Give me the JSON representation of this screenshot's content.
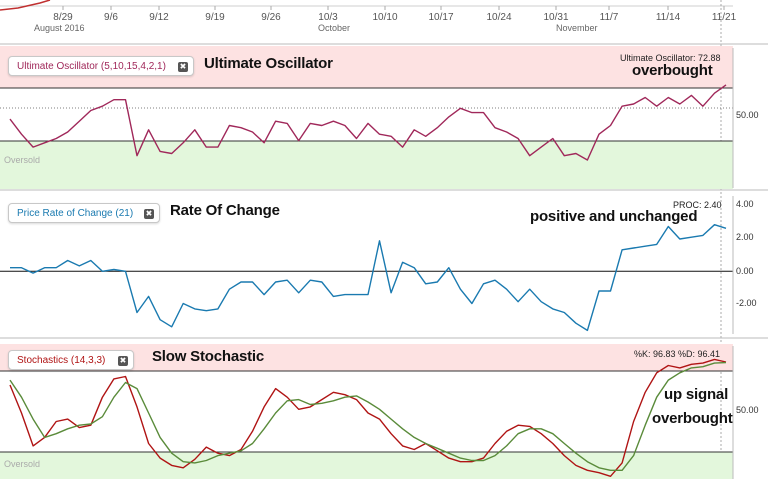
{
  "chart_data": [
    {
      "type": "line",
      "panel": "price-timeline",
      "x_tick_labels": [
        "8/29",
        "9/6",
        "9/12",
        "9/19",
        "9/26",
        "10/3",
        "10/10",
        "10/17",
        "10/24",
        "10/31",
        "11/7",
        "11/14",
        "11/21"
      ],
      "month_labels": [
        "August 2016",
        "October",
        "November"
      ]
    },
    {
      "type": "line",
      "panel": "ultimate-oscillator",
      "legend": "Ultimate Oscillator (5,10,15,4,2,1)",
      "readout": "Ultimate Oscillator: 72.88",
      "title": "Ultimate Oscillator",
      "annotation": "overbought",
      "y_tick_labels": [
        "50.00"
      ],
      "overbought_label": "",
      "oversold_label": "Oversold",
      "ylim": [
        25,
        90
      ],
      "series": [
        {
          "name": "Ultimate Oscillator",
          "color": "#a0285a",
          "values": [
            57,
            50,
            44,
            46,
            48,
            51,
            56,
            61,
            63,
            66,
            66,
            40,
            52,
            42,
            41,
            46,
            52,
            44,
            44,
            54,
            53,
            51,
            46,
            56,
            55,
            47,
            55,
            54,
            56,
            54,
            48,
            55,
            50,
            49,
            44,
            52,
            49,
            53,
            58,
            62,
            60,
            60,
            53,
            51,
            48,
            40,
            44,
            48,
            40,
            41,
            38,
            50,
            54,
            63,
            64,
            67,
            63,
            67,
            64,
            68,
            63,
            69,
            72.88
          ]
        }
      ]
    },
    {
      "type": "line",
      "panel": "price-rate-of-change",
      "legend": "Price Rate of Change (21)",
      "readout": "PROC: 2.40",
      "title": "Rate Of Change",
      "annotation": "positive and unchanged",
      "y_tick_labels": [
        "4.00",
        "2.00",
        "0.00",
        "-2.00"
      ],
      "ylim": [
        -3.5,
        4.2
      ],
      "zero_line": 0,
      "series": [
        {
          "name": "PROC",
          "color": "#1a7ab0",
          "values": [
            0.2,
            0.2,
            -0.1,
            0.2,
            0.2,
            0.6,
            0.3,
            0.6,
            0.0,
            0.1,
            0.0,
            -2.3,
            -1.4,
            -2.7,
            -3.1,
            -1.8,
            -2.1,
            -2.2,
            -2.1,
            -1.0,
            -0.6,
            -0.6,
            -1.3,
            -0.6,
            -0.5,
            -1.2,
            -0.5,
            -0.6,
            -1.4,
            -1.3,
            -1.3,
            -1.3,
            1.7,
            -1.2,
            0.5,
            0.2,
            -0.7,
            -0.6,
            0.2,
            -1.0,
            -1.8,
            -0.7,
            -0.5,
            -1.0,
            -1.7,
            -1.0,
            -1.7,
            -2.1,
            -2.3,
            -2.9,
            -3.3,
            -1.1,
            -1.1,
            1.2,
            1.3,
            1.4,
            1.5,
            2.5,
            1.8,
            1.9,
            2.0,
            2.6,
            2.4
          ]
        }
      ]
    },
    {
      "type": "line",
      "panel": "slow-stochastic",
      "legend": "Stochastics (14,3,3)",
      "readout": "%K: 96.83 %D: 96.41",
      "title": "Slow Stochastic",
      "annotations": [
        "up signal",
        "overbought"
      ],
      "y_tick_labels": [
        "50.00"
      ],
      "overbought_label": "",
      "oversold_label": "Oversold",
      "ylim": [
        0,
        110
      ],
      "series": [
        {
          "name": "%K",
          "color": "#b01414",
          "values": [
            78,
            55,
            28,
            35,
            48,
            50,
            43,
            45,
            68,
            83,
            85,
            60,
            30,
            18,
            12,
            10,
            17,
            27,
            22,
            20,
            25,
            40,
            60,
            75,
            68,
            58,
            60,
            66,
            72,
            70,
            66,
            55,
            50,
            38,
            28,
            25,
            30,
            24,
            18,
            15,
            15,
            18,
            30,
            40,
            45,
            44,
            38,
            30,
            20,
            12,
            8,
            6,
            3,
            14,
            48,
            72,
            88,
            94,
            92,
            95,
            96,
            99,
            96.83
          ]
        },
        {
          "name": "%D",
          "color": "#5a8b3a",
          "values": [
            82,
            68,
            50,
            35,
            38,
            42,
            45,
            46,
            52,
            68,
            80,
            75,
            55,
            35,
            22,
            15,
            14,
            16,
            20,
            22,
            24,
            30,
            42,
            55,
            65,
            66,
            62,
            63,
            65,
            68,
            69,
            64,
            58,
            50,
            42,
            35,
            30,
            26,
            22,
            18,
            16,
            16,
            20,
            28,
            38,
            42,
            42,
            38,
            30,
            22,
            15,
            10,
            8,
            8,
            20,
            45,
            68,
            82,
            88,
            92,
            93,
            96,
            96.41
          ]
        }
      ]
    }
  ]
}
